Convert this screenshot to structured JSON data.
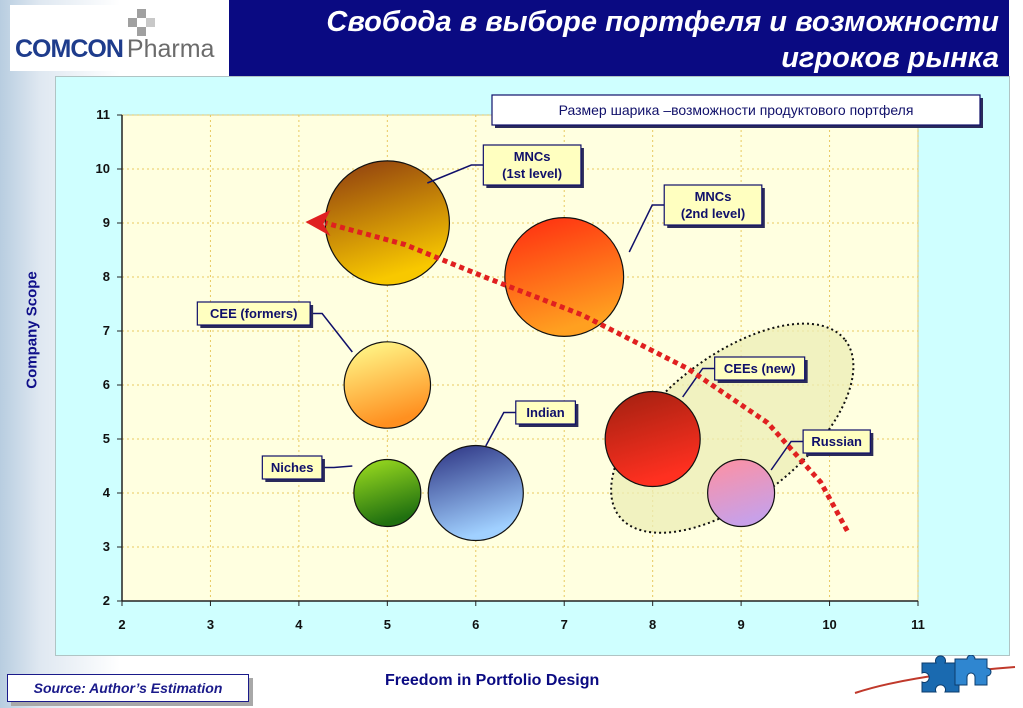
{
  "header": {
    "logo_word": "COMCON",
    "logo_sub": "Pharma",
    "title_line1": "Свобода в выборе портфеля и возможности",
    "title_line2": "игроков рынка"
  },
  "footer": {
    "source": "Source:  Author’s Estimation",
    "caption": "Freedom in Portfolio Design"
  },
  "colors": {
    "title_bar": "#0a0a82",
    "plot_bg": "#ffffe0",
    "panel_bg": "#cfffff",
    "arrow": "#e02020"
  },
  "chart_data": {
    "type": "bubble",
    "ylabel": "Company Scope",
    "xlabel": "",
    "xlim": [
      2,
      11
    ],
    "ylim": [
      2,
      11
    ],
    "xticks": [
      "2",
      "3",
      "4",
      "5",
      "6",
      "7",
      "8",
      "9",
      "10",
      "11"
    ],
    "yticks": [
      "2",
      "3",
      "4",
      "5",
      "6",
      "7",
      "8",
      "9",
      "10",
      "11"
    ],
    "grid": "dashed",
    "legend_note": "Размер шарика –возможности продуктового портфеля",
    "bubbles": [
      {
        "label": "MNCs\n(1st level)",
        "x": 5,
        "y": 9,
        "size": 1.15,
        "color_top": "#8c3a10",
        "color_bottom": "#f8c800"
      },
      {
        "label": "MNCs\n(2nd level)",
        "x": 7,
        "y": 8,
        "size": 1.1,
        "color_top": "#ff2a10",
        "color_bottom": "#ffa020"
      },
      {
        "label": "CEE (formers)",
        "x": 5,
        "y": 6,
        "size": 0.8,
        "color_top": "#ffff90",
        "color_bottom": "#ff9020"
      },
      {
        "label": "Niches",
        "x": 5,
        "y": 4,
        "size": 0.62,
        "color_top": "#a0e020",
        "color_bottom": "#207010"
      },
      {
        "label": "Indian",
        "x": 6,
        "y": 4,
        "size": 0.88,
        "color_top": "#2a3080",
        "color_bottom": "#a0d0ff"
      },
      {
        "label": "CEEs (new)",
        "x": 8,
        "y": 5,
        "size": 0.88,
        "color_top": "#a02010",
        "color_bottom": "#ff3020"
      },
      {
        "label": "Russian",
        "x": 9,
        "y": 4,
        "size": 0.62,
        "color_top": "#ff90a0",
        "color_bottom": "#c8a0e8"
      }
    ],
    "trend_arrow": {
      "x": [
        10.2,
        9.9,
        9.3,
        8.4,
        7.2,
        6.1,
        5.2,
        4.3
      ],
      "y": [
        3.3,
        4.2,
        5.3,
        6.3,
        7.3,
        8.0,
        8.6,
        9.0
      ]
    },
    "cluster_ellipse": {
      "center": [
        8.9,
        5.2
      ],
      "rx": 1.8,
      "ry": 2.4
    }
  }
}
